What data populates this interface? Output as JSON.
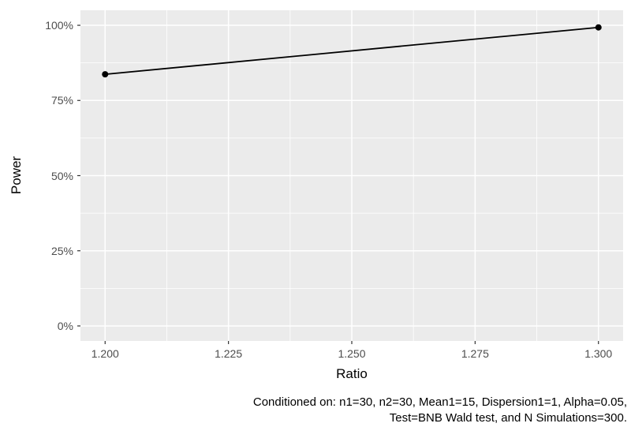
{
  "chart_data": {
    "type": "line",
    "title": "",
    "xlabel": "Ratio",
    "ylabel": "Power",
    "caption": {
      "line1": "Conditioned on: n1=30, n2=30, Mean1=15, Dispersion1=1, Alpha=0.05,",
      "line2": "Test=BNB Wald test, and N Simulations=300."
    },
    "x_unit": "ratio",
    "y_unit": "percent",
    "xlim": [
      1.195,
      1.305
    ],
    "ylim": [
      -5,
      105
    ],
    "grid": true,
    "legend_position": "none",
    "x_ticks": [
      {
        "value": 1.2,
        "label": "1.200"
      },
      {
        "value": 1.225,
        "label": "1.225"
      },
      {
        "value": 1.25,
        "label": "1.250"
      },
      {
        "value": 1.275,
        "label": "1.275"
      },
      {
        "value": 1.3,
        "label": "1.300"
      }
    ],
    "y_ticks": [
      {
        "value": 0,
        "label": "0%"
      },
      {
        "value": 25,
        "label": "25%"
      },
      {
        "value": 50,
        "label": "50%"
      },
      {
        "value": 75,
        "label": "75%"
      },
      {
        "value": 100,
        "label": "100%"
      }
    ],
    "x_minor": [
      1.2125,
      1.2375,
      1.2625,
      1.2875
    ],
    "y_minor": [
      12.5,
      37.5,
      62.5,
      87.5
    ],
    "series": [
      {
        "name": "power-curve",
        "points": [
          {
            "x": 1.2,
            "y": 83.7
          },
          {
            "x": 1.3,
            "y": 99.3
          }
        ]
      }
    ],
    "colors": {
      "panel_background": "#ebebeb",
      "gridline": "#ffffff",
      "tick_text": "#4d4d4d",
      "tick_mark": "#333333",
      "axis_title_text": "#000000",
      "caption_text": "#000000",
      "line": "#000000",
      "point": "#000000",
      "plot_background": "#ffffff"
    }
  }
}
